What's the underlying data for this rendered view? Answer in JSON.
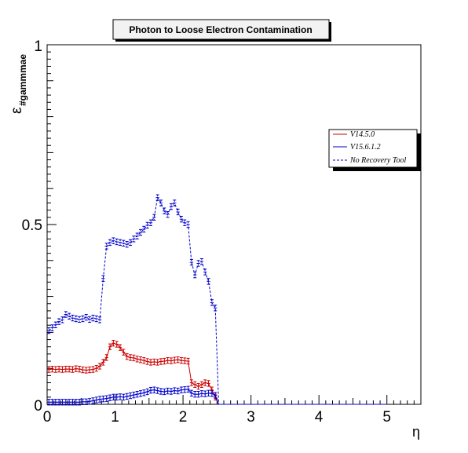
{
  "chart_data": {
    "type": "line",
    "title": "Photon to Loose Electron Contamination",
    "xlabel": "η",
    "ylabel_main": "ε",
    "ylabel_sub": "#gammmae",
    "xlim": [
      0,
      5.5
    ],
    "ylim": [
      0,
      1
    ],
    "x_ticks": [
      "0",
      "1",
      "2",
      "3",
      "4",
      "5"
    ],
    "y_ticks": [
      "0",
      "0.5",
      "1"
    ],
    "grid": false,
    "legend_position": "top-right",
    "legend": [
      "V14.5.0",
      "V15.6.1.2",
      "No Recovery Tool"
    ],
    "x": [
      0.025,
      0.075,
      0.125,
      0.175,
      0.225,
      0.275,
      0.325,
      0.375,
      0.425,
      0.475,
      0.525,
      0.575,
      0.625,
      0.675,
      0.725,
      0.775,
      0.825,
      0.875,
      0.925,
      0.975,
      1.025,
      1.075,
      1.125,
      1.175,
      1.225,
      1.275,
      1.325,
      1.375,
      1.425,
      1.475,
      1.525,
      1.575,
      1.625,
      1.675,
      1.725,
      1.775,
      1.825,
      1.875,
      1.925,
      1.975,
      2.025,
      2.075,
      2.125,
      2.175,
      2.225,
      2.275,
      2.325,
      2.375,
      2.425,
      2.475,
      2.525,
      2.575,
      2.625,
      2.675,
      2.725,
      2.775,
      2.825,
      2.875,
      2.925,
      2.975,
      3.025,
      3.075,
      3.125,
      3.175,
      3.225,
      3.275,
      3.325,
      3.375,
      3.425,
      3.475,
      3.525,
      3.575,
      3.625,
      3.675,
      3.725,
      3.775,
      3.825,
      3.875,
      3.925,
      3.975,
      4.025,
      4.075,
      4.125,
      4.175,
      4.225,
      4.275,
      4.325,
      4.375,
      4.425,
      4.475,
      4.525,
      4.575,
      4.625,
      4.675,
      4.725,
      4.775,
      4.825,
      4.875,
      4.925,
      4.975
    ],
    "series": [
      {
        "name": "V14.5.0",
        "color": "#cc0000",
        "style": "solid",
        "values": [
          0.097,
          0.098,
          0.097,
          0.098,
          0.097,
          0.098,
          0.098,
          0.097,
          0.099,
          0.098,
          0.096,
          0.095,
          0.096,
          0.097,
          0.1,
          0.106,
          0.117,
          0.13,
          0.16,
          0.17,
          0.167,
          0.158,
          0.145,
          0.133,
          0.13,
          0.129,
          0.126,
          0.124,
          0.122,
          0.119,
          0.117,
          0.118,
          0.117,
          0.119,
          0.12,
          0.122,
          0.121,
          0.123,
          0.124,
          0.122,
          0.121,
          0.12,
          0.06,
          0.055,
          0.05,
          0.055,
          0.06,
          0.058,
          0.04,
          0.02,
          0.0,
          0.0,
          0.0,
          0.0,
          0.0,
          0.0,
          0.0,
          0.0,
          0.0,
          0.0,
          0.0,
          0.0,
          0.0,
          0.0,
          0.0,
          0.0,
          0.0,
          0.0,
          0.0,
          0.0,
          0.0,
          0.0,
          0.0,
          0.0,
          0.0,
          0.0,
          0.0,
          0.0,
          0.0,
          0.0,
          0.0,
          0.0,
          0.0,
          0.0,
          0.0,
          0.0,
          0.0,
          0.0,
          0.0,
          0.0,
          0.0,
          0.0,
          0.0,
          0.0,
          0.0,
          0.0,
          0.0,
          0.0,
          0.0,
          0.0
        ]
      },
      {
        "name": "V15.6.1.2",
        "color": "#0000cc",
        "style": "solid",
        "values": [
          0.006,
          0.006,
          0.006,
          0.006,
          0.006,
          0.006,
          0.006,
          0.006,
          0.006,
          0.006,
          0.007,
          0.007,
          0.008,
          0.01,
          0.012,
          0.014,
          0.015,
          0.016,
          0.018,
          0.02,
          0.02,
          0.021,
          0.02,
          0.022,
          0.024,
          0.026,
          0.028,
          0.03,
          0.032,
          0.035,
          0.039,
          0.04,
          0.038,
          0.036,
          0.035,
          0.037,
          0.036,
          0.038,
          0.037,
          0.04,
          0.041,
          0.042,
          0.031,
          0.028,
          0.028,
          0.03,
          0.029,
          0.031,
          0.03,
          0.025,
          0.0,
          0.0,
          0.0,
          0.0,
          0.0,
          0.0,
          0.0,
          0.0,
          0.0,
          0.0,
          0.0,
          0.0,
          0.0,
          0.0,
          0.0,
          0.0,
          0.0,
          0.0,
          0.0,
          0.0,
          0.0,
          0.0,
          0.0,
          0.0,
          0.0,
          0.0,
          0.0,
          0.0,
          0.0,
          0.0,
          0.0,
          0.0,
          0.0,
          0.0,
          0.0,
          0.0,
          0.0,
          0.0,
          0.0,
          0.0,
          0.0,
          0.0,
          0.0,
          0.0,
          0.0,
          0.0,
          0.0,
          0.0,
          0.0,
          0.0
        ]
      },
      {
        "name": "No Recovery Tool",
        "color": "#0000cc",
        "style": "dashed",
        "values": [
          0.205,
          0.213,
          0.221,
          0.23,
          0.235,
          0.25,
          0.245,
          0.24,
          0.238,
          0.236,
          0.238,
          0.242,
          0.236,
          0.24,
          0.238,
          0.235,
          0.35,
          0.44,
          0.45,
          0.455,
          0.452,
          0.45,
          0.448,
          0.445,
          0.45,
          0.46,
          0.468,
          0.478,
          0.487,
          0.498,
          0.505,
          0.52,
          0.575,
          0.56,
          0.538,
          0.528,
          0.55,
          0.56,
          0.535,
          0.515,
          0.505,
          0.5,
          0.395,
          0.36,
          0.392,
          0.397,
          0.368,
          0.342,
          0.283,
          0.268,
          0.0,
          0.0,
          0.0,
          0.0,
          0.0,
          0.0,
          0.0,
          0.0,
          0.0,
          0.0,
          0.0,
          0.0,
          0.0,
          0.0,
          0.0,
          0.0,
          0.0,
          0.0,
          0.0,
          0.0,
          0.0,
          0.0,
          0.0,
          0.0,
          0.0,
          0.0,
          0.0,
          0.0,
          0.0,
          0.0,
          0.0,
          0.0,
          0.0,
          0.0,
          0.0,
          0.0,
          0.0,
          0.0,
          0.0,
          0.0,
          0.0,
          0.0,
          0.0,
          0.0,
          0.0,
          0.0,
          0.0,
          0.0,
          0.0,
          0.0
        ]
      }
    ]
  }
}
